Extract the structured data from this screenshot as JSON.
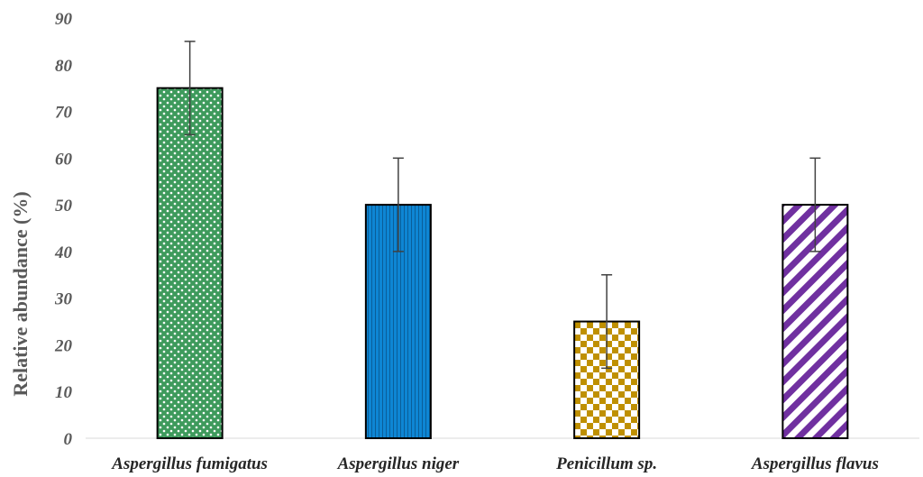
{
  "chart_data": {
    "type": "bar",
    "title": "",
    "xlabel": "",
    "ylabel": "Relative abundance (%)",
    "ylim": [
      0,
      90
    ],
    "yticks": [
      0,
      10,
      20,
      30,
      40,
      50,
      60,
      70,
      80,
      90
    ],
    "grid": false,
    "categories": [
      "Aspergillus fumigatus",
      "Aspergillus niger",
      "Penicillum sp.",
      "Aspergillus flavus"
    ],
    "series": [
      {
        "values": [
          75,
          50,
          25,
          50
        ],
        "error": [
          10,
          10,
          10,
          10
        ]
      }
    ],
    "bar_styles": [
      {
        "pattern": "dots",
        "color": "#3e9a5c"
      },
      {
        "pattern": "vertical-lines",
        "color": "#0e86d4"
      },
      {
        "pattern": "checkerboard",
        "color": "#bf9000"
      },
      {
        "pattern": "diagonal-stripes",
        "color": "#7030a0"
      }
    ]
  }
}
